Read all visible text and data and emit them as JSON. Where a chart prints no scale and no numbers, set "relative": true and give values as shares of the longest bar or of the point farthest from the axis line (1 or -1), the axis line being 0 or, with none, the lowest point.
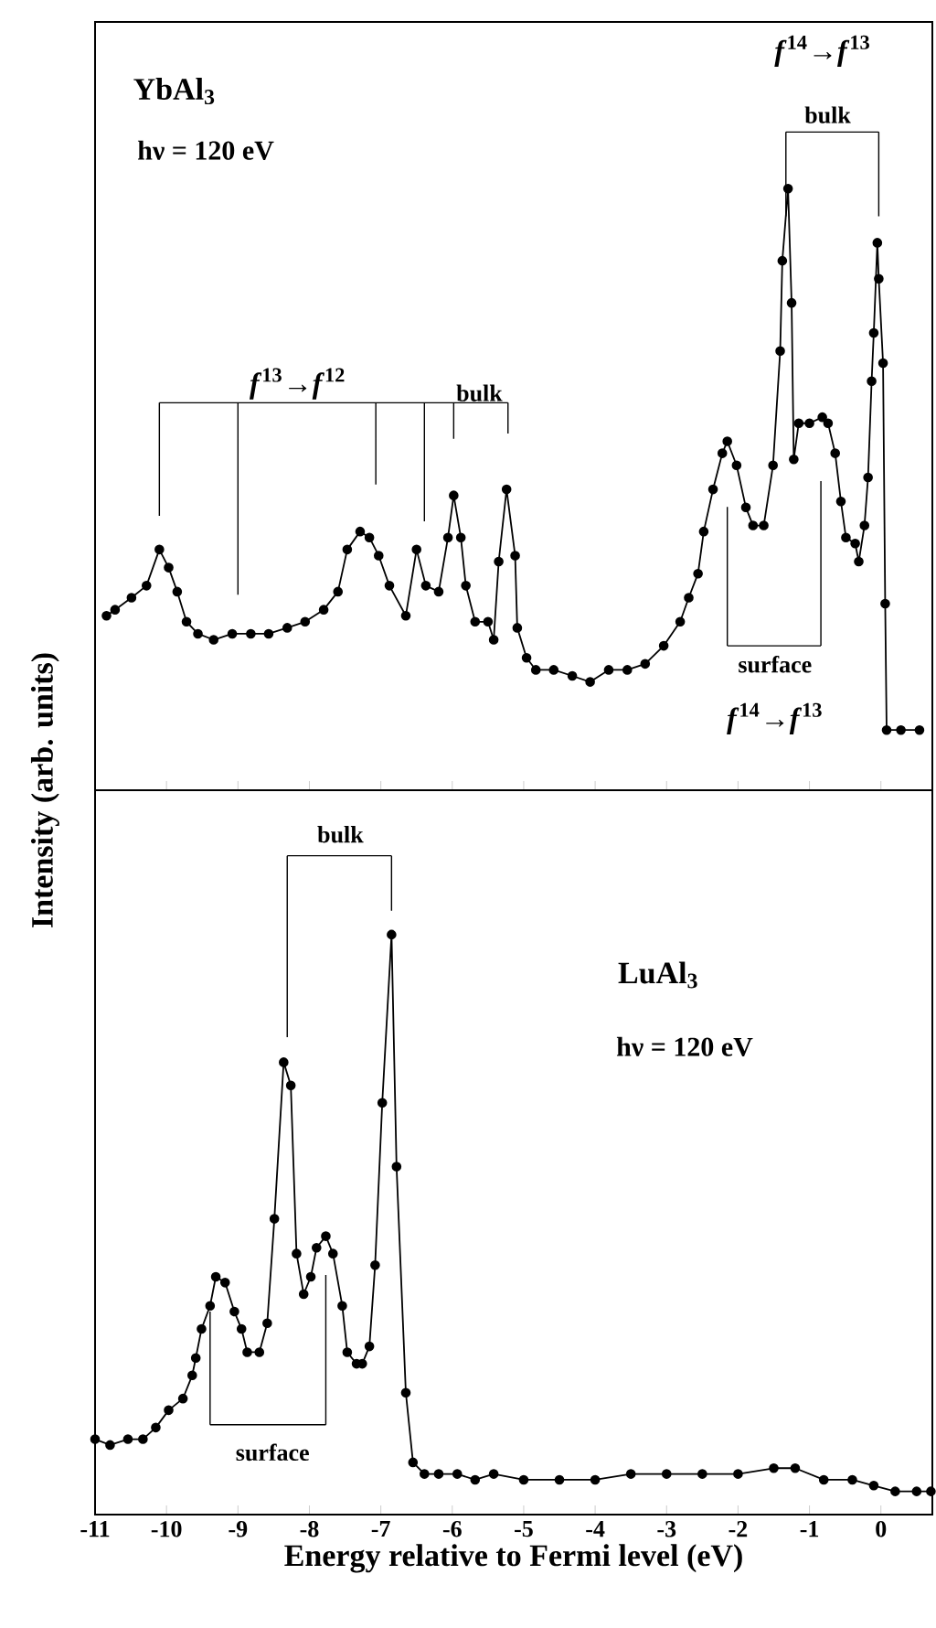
{
  "chart_data": [
    {
      "type": "line",
      "relative": true,
      "marker": "circle",
      "color": "#000000",
      "xlim": [
        -11,
        0.72
      ],
      "xticks": [
        -11,
        -10,
        -9,
        -8,
        -7,
        -6,
        -5,
        -4,
        -3,
        -2,
        -1,
        0
      ],
      "tick_labels": false,
      "ylabel": "Intensity (arb. units)",
      "annotations": [
        "YbAl$_{3}$",
        "hν = 120 eV",
        "*f*$^{13}$→*f*$^{12}$",
        "bulk",
        "*f*$^{14}$→*f*$^{13}$",
        "bulk",
        "surface",
        "*f*$^{14}$→*f*$^{13}$"
      ],
      "x": [
        -10.84,
        -10.72,
        -10.49,
        -10.28,
        -10.1,
        -9.97,
        -9.85,
        -9.72,
        -9.56,
        -9.34,
        -9.08,
        -8.82,
        -8.57,
        -8.31,
        -8.06,
        -7.8,
        -7.6,
        -7.47,
        -7.29,
        -7.16,
        -7.03,
        -6.88,
        -6.65,
        -6.5,
        -6.37,
        -6.19,
        -6.06,
        -5.98,
        -5.88,
        -5.81,
        -5.68,
        -5.5,
        -5.42,
        -5.35,
        -5.24,
        -5.12,
        -5.09,
        -4.96,
        -4.83,
        -4.58,
        -4.32,
        -4.07,
        -3.81,
        -3.55,
        -3.3,
        -3.04,
        -2.81,
        -2.69,
        -2.56,
        -2.48,
        -2.35,
        -2.22,
        -2.15,
        -2.02,
        -1.89,
        -1.79,
        -1.64,
        -1.51,
        -1.41,
        -1.38,
        -1.3,
        -1.25,
        -1.22,
        -1.15,
        -1.0,
        -0.82,
        -0.74,
        -0.64,
        -0.56,
        -0.49,
        -0.36,
        -0.31,
        -0.23,
        -0.18,
        -0.13,
        -0.1,
        -0.05,
        -0.03,
        0.03,
        0.06,
        0.08,
        0.28,
        0.54
      ],
      "values": [
        0.29,
        0.3,
        0.32,
        0.34,
        0.4,
        0.37,
        0.33,
        0.28,
        0.26,
        0.25,
        0.26,
        0.26,
        0.26,
        0.27,
        0.28,
        0.3,
        0.33,
        0.4,
        0.43,
        0.42,
        0.39,
        0.34,
        0.29,
        0.4,
        0.34,
        0.33,
        0.42,
        0.49,
        0.42,
        0.34,
        0.28,
        0.28,
        0.25,
        0.38,
        0.5,
        0.39,
        0.27,
        0.22,
        0.2,
        0.2,
        0.19,
        0.18,
        0.2,
        0.2,
        0.21,
        0.24,
        0.28,
        0.32,
        0.36,
        0.43,
        0.5,
        0.56,
        0.58,
        0.54,
        0.47,
        0.44,
        0.44,
        0.54,
        0.73,
        0.88,
        1.0,
        0.81,
        0.55,
        0.61,
        0.61,
        0.62,
        0.61,
        0.56,
        0.48,
        0.42,
        0.41,
        0.38,
        0.44,
        0.52,
        0.68,
        0.76,
        0.91,
        0.85,
        0.71,
        0.31,
        0.1,
        0.1,
        0.1
      ]
    },
    {
      "type": "line",
      "relative": true,
      "marker": "circle",
      "color": "#000000",
      "xlim": [
        -11,
        0.72
      ],
      "xticks": [
        -11,
        -10,
        -9,
        -8,
        -7,
        -6,
        -5,
        -4,
        -3,
        -2,
        -1,
        0
      ],
      "tick_labels": "x",
      "xlabel": "Energy relative to Fermi level (eV)",
      "annotations": [
        "bulk",
        "surface",
        "LuAl$_{3}$",
        "hν = 120 eV"
      ],
      "x": [
        -11.0,
        -10.79,
        -10.54,
        -10.33,
        -10.15,
        -9.97,
        -9.77,
        -9.64,
        -9.59,
        -9.51,
        -9.39,
        -9.31,
        -9.18,
        -9.05,
        -8.95,
        -8.87,
        -8.7,
        -8.59,
        -8.49,
        -8.36,
        -8.26,
        -8.18,
        -8.08,
        -7.98,
        -7.9,
        -7.77,
        -7.67,
        -7.54,
        -7.47,
        -7.34,
        -7.26,
        -7.16,
        -7.08,
        -6.98,
        -6.85,
        -6.78,
        -6.65,
        -6.55,
        -6.39,
        -6.19,
        -5.93,
        -5.68,
        -5.42,
        -5.0,
        -4.5,
        -4.0,
        -3.5,
        -3.0,
        -2.5,
        -2.0,
        -1.5,
        -1.2,
        -0.8,
        -0.4,
        -0.1,
        0.2,
        0.5,
        0.7
      ],
      "values": [
        0.13,
        0.12,
        0.13,
        0.13,
        0.15,
        0.18,
        0.2,
        0.24,
        0.27,
        0.32,
        0.36,
        0.41,
        0.4,
        0.35,
        0.32,
        0.28,
        0.28,
        0.33,
        0.51,
        0.78,
        0.74,
        0.45,
        0.38,
        0.41,
        0.46,
        0.48,
        0.45,
        0.36,
        0.28,
        0.26,
        0.26,
        0.29,
        0.43,
        0.71,
        1.0,
        0.6,
        0.21,
        0.09,
        0.07,
        0.07,
        0.07,
        0.06,
        0.07,
        0.06,
        0.06,
        0.06,
        0.07,
        0.07,
        0.07,
        0.07,
        0.08,
        0.08,
        0.06,
        0.06,
        0.05,
        0.04,
        0.04,
        0.04
      ]
    }
  ]
}
